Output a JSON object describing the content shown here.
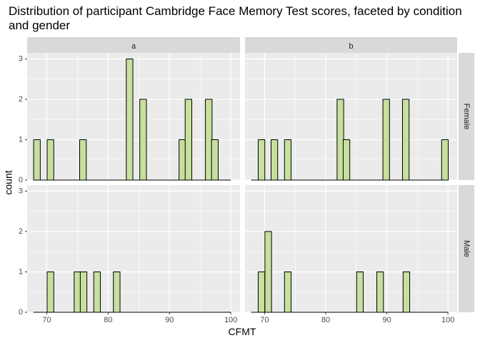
{
  "chart_data": {
    "type": "bar",
    "title": "Distribution of participant Cambridge Face Memory Test scores, faceted by condition and gender",
    "xlabel": "CFMT",
    "ylabel": "count",
    "x_ticks": [
      70,
      80,
      90,
      100
    ],
    "y_ticks": [
      0,
      1,
      2,
      3
    ],
    "xlim": [
      66.8,
      101.5
    ],
    "ylim": [
      0,
      3.15
    ],
    "bin_width": 1.08,
    "column_facets": [
      "a",
      "b"
    ],
    "row_facets": [
      "Female",
      "Male"
    ],
    "grid": true,
    "colors": {
      "bar_fill": "#c7df9f",
      "bar_stroke": "#000000",
      "panel_bg": "#ebebeb",
      "strip_bg": "#d9d9d9",
      "grid": "#ffffff"
    },
    "panels": [
      {
        "column": "a",
        "row": "Female",
        "baseline_range": [
          67.8,
          100.0
        ],
        "bins": [
          {
            "x": 68.4,
            "count": 1
          },
          {
            "x": 70.6,
            "count": 1
          },
          {
            "x": 75.9,
            "count": 1
          },
          {
            "x": 83.5,
            "count": 3
          },
          {
            "x": 85.7,
            "count": 2
          },
          {
            "x": 92.1,
            "count": 1
          },
          {
            "x": 93.1,
            "count": 2
          },
          {
            "x": 96.4,
            "count": 2
          },
          {
            "x": 97.4,
            "count": 1
          }
        ]
      },
      {
        "column": "b",
        "row": "Female",
        "baseline_range": [
          67.8,
          100.0
        ],
        "bins": [
          {
            "x": 69.5,
            "count": 1
          },
          {
            "x": 71.6,
            "count": 1
          },
          {
            "x": 73.8,
            "count": 1
          },
          {
            "x": 82.4,
            "count": 2
          },
          {
            "x": 83.4,
            "count": 1
          },
          {
            "x": 89.9,
            "count": 2
          },
          {
            "x": 93.1,
            "count": 2
          },
          {
            "x": 99.5,
            "count": 1
          }
        ]
      },
      {
        "column": "a",
        "row": "Male",
        "baseline_range": [
          67.8,
          100.0
        ],
        "bins": [
          {
            "x": 70.6,
            "count": 1
          },
          {
            "x": 75.0,
            "count": 1
          },
          {
            "x": 76.0,
            "count": 1
          },
          {
            "x": 78.2,
            "count": 1
          },
          {
            "x": 81.4,
            "count": 1
          }
        ]
      },
      {
        "column": "b",
        "row": "Male",
        "baseline_range": [
          67.8,
          100.0
        ],
        "bins": [
          {
            "x": 69.5,
            "count": 1
          },
          {
            "x": 70.6,
            "count": 2
          },
          {
            "x": 73.8,
            "count": 1
          },
          {
            "x": 85.6,
            "count": 1
          },
          {
            "x": 88.9,
            "count": 1
          },
          {
            "x": 93.2,
            "count": 1
          }
        ]
      }
    ]
  }
}
